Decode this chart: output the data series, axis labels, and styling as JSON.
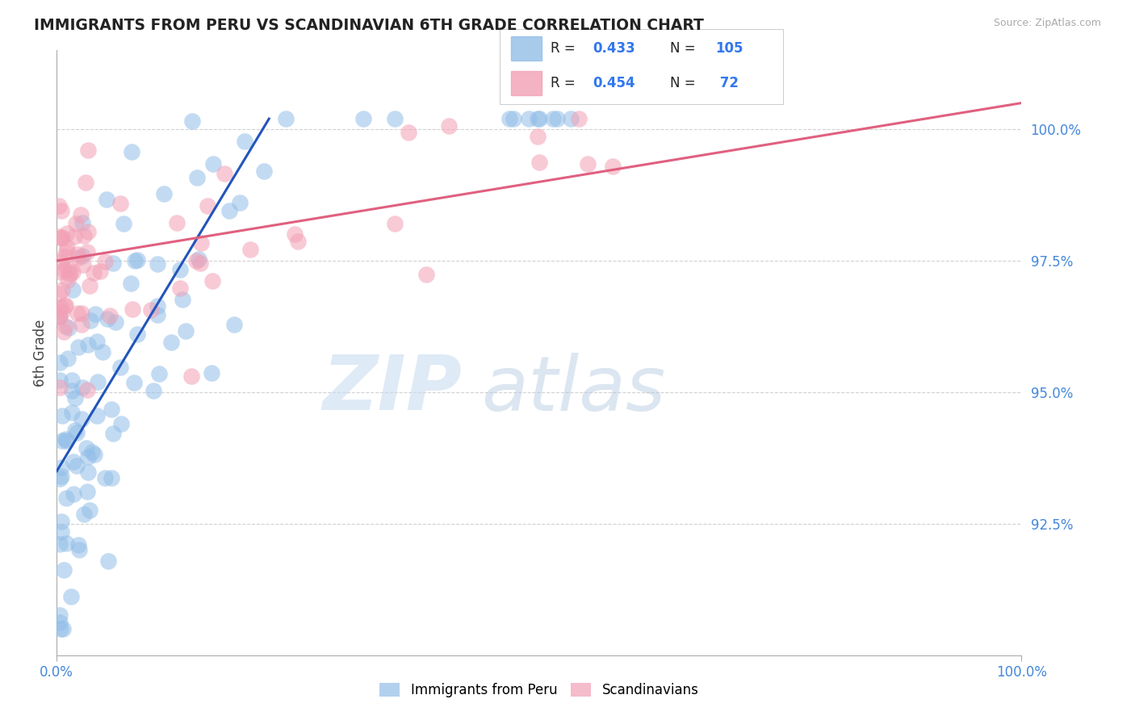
{
  "title": "IMMIGRANTS FROM PERU VS SCANDINAVIAN 6TH GRADE CORRELATION CHART",
  "source": "Source: ZipAtlas.com",
  "ylabel": "6th Grade",
  "xlim": [
    0.0,
    100.0
  ],
  "ylim": [
    90.0,
    101.5
  ],
  "yticks": [
    92.5,
    95.0,
    97.5,
    100.0
  ],
  "ytick_labels": [
    "92.5%",
    "95.0%",
    "97.5%",
    "100.0%"
  ],
  "blue_color": "#92BEE8",
  "pink_color": "#F2A0B5",
  "blue_line_color": "#2255BB",
  "pink_line_color": "#E06080",
  "background_color": "#FFFFFF",
  "grid_color": "#CCCCCC",
  "blue_trend_x0": 0.0,
  "blue_trend_y0": 93.5,
  "blue_trend_x1": 22.0,
  "blue_trend_y1": 100.2,
  "pink_trend_x0": 0.0,
  "pink_trend_y0": 97.5,
  "pink_trend_x1": 100.0,
  "pink_trend_y1": 100.5,
  "legend_items": [
    {
      "label": "R = 0.433  N = 105",
      "color": "#92BEE8"
    },
    {
      "label": "R = 0.454  N =  72",
      "color": "#F2A0B5"
    }
  ]
}
